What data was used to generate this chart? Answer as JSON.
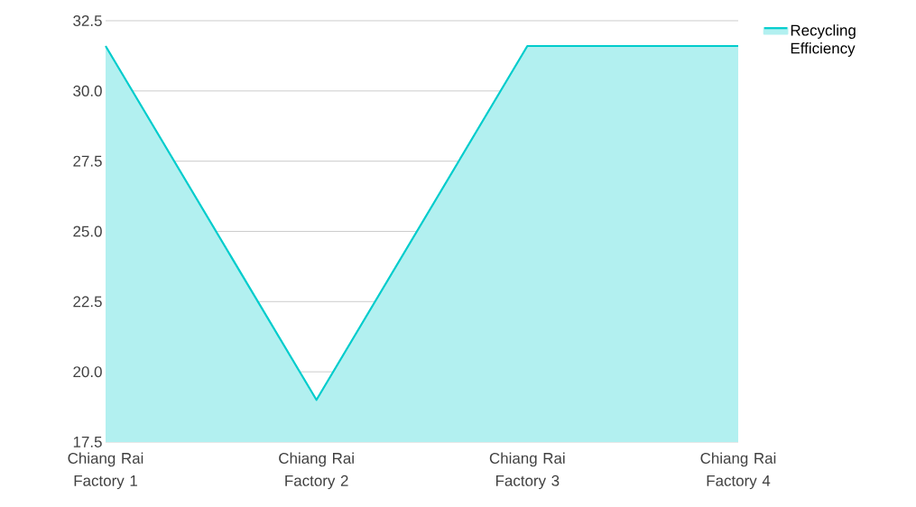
{
  "chart_data": {
    "type": "area",
    "categories": [
      "Chiang Rai Factory 1",
      "Chiang Rai Factory 2",
      "Chiang Rai Factory 3",
      "Chiang Rai Factory 4"
    ],
    "series": [
      {
        "name": "Recycling Efficiency",
        "color": "#00cccc",
        "values": [
          31.6,
          19.0,
          31.6,
          31.6
        ]
      }
    ],
    "ylim": [
      17.5,
      32.5
    ],
    "yticks": [
      {
        "value": 17.5,
        "label": "17.5"
      },
      {
        "value": 20,
        "label": "20.0"
      },
      {
        "value": 22.5,
        "label": "22.5"
      },
      {
        "value": 25,
        "label": "25.0"
      },
      {
        "value": 27.5,
        "label": "27.5"
      },
      {
        "value": 30,
        "label": "30.0"
      },
      {
        "value": 32.5,
        "label": "32.5"
      }
    ],
    "grid": "y",
    "legend": "top right"
  }
}
